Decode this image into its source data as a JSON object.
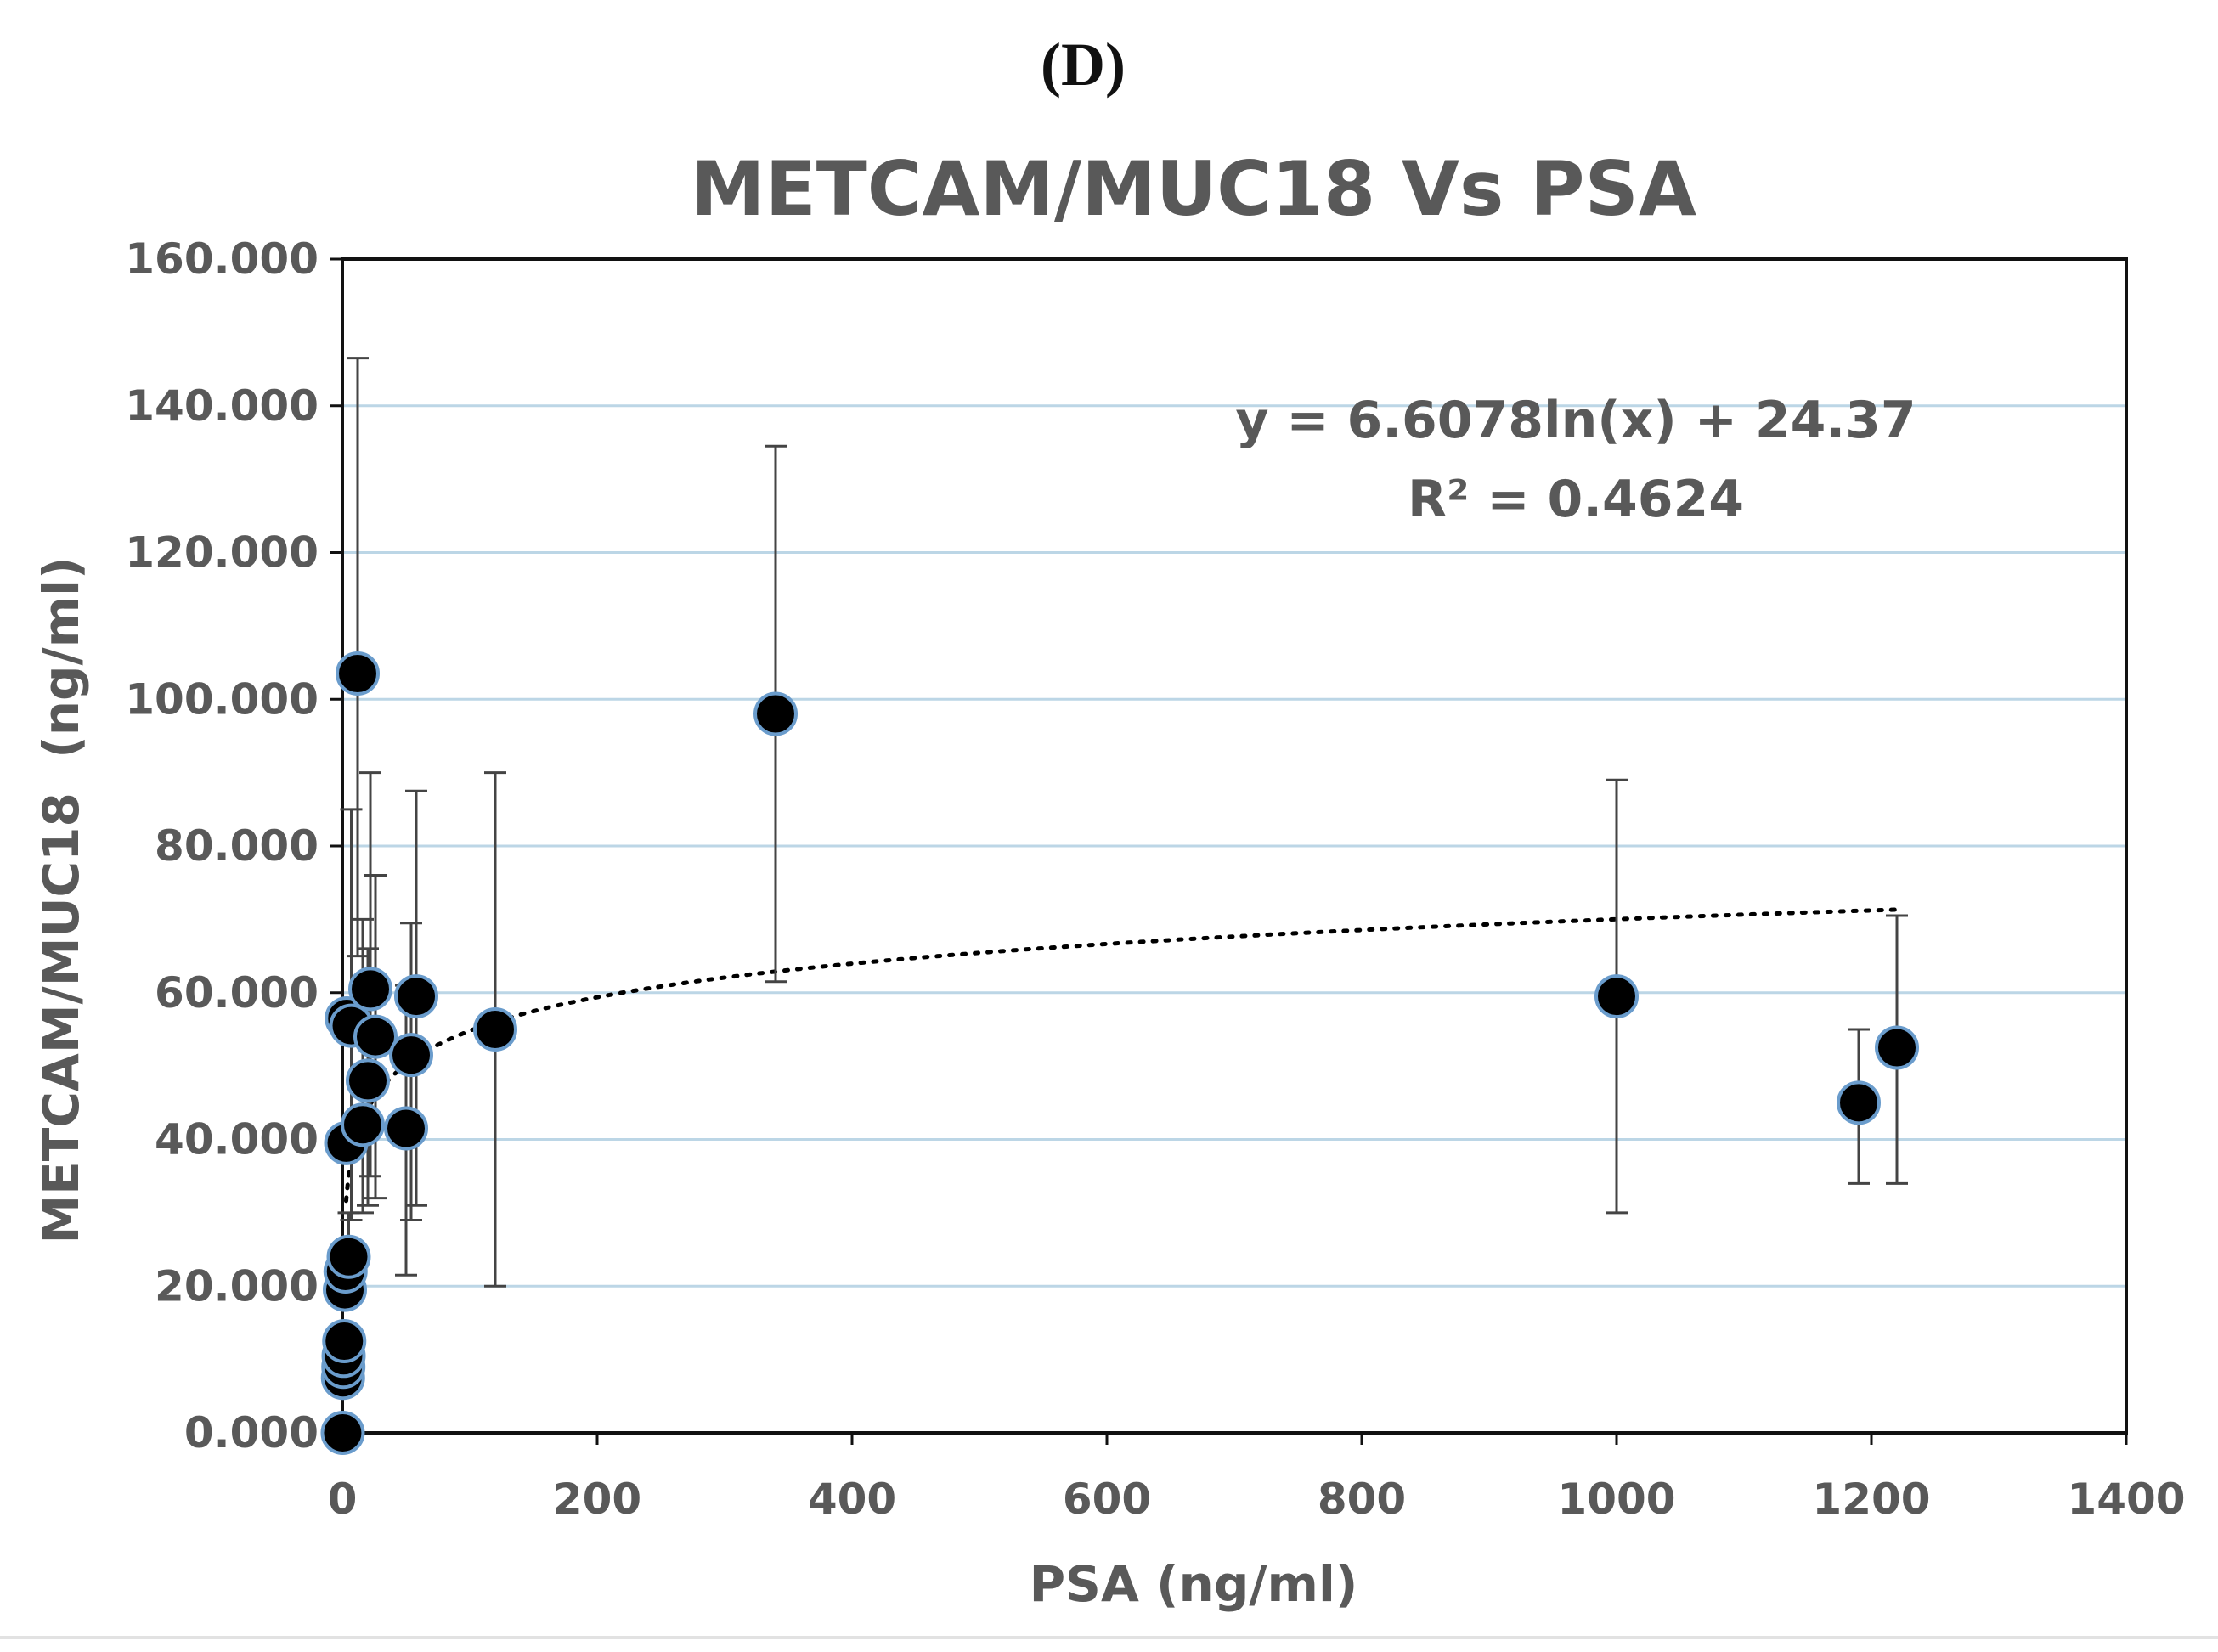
{
  "figure": {
    "panel_label": "(D)"
  },
  "chart_data": {
    "type": "scatter",
    "title": "METCAM/MUC18 Vs PSA",
    "xlabel": "PSA (ng/ml)",
    "ylabel": "METCAM/MUC18  (ng/ml)",
    "xlim": [
      0,
      1400
    ],
    "ylim": [
      0,
      160
    ],
    "x_ticks": [
      "0",
      "200",
      "400",
      "600",
      "800",
      "1000",
      "1200",
      "1400"
    ],
    "y_ticks": [
      "0.000",
      "20.000",
      "40.000",
      "60.000",
      "80.000",
      "100.000",
      "120.000",
      "140.000",
      "160.000"
    ],
    "x_tick_values": [
      0,
      200,
      400,
      600,
      800,
      1000,
      1200,
      1400
    ],
    "y_tick_values": [
      0,
      20,
      40,
      60,
      80,
      100,
      120,
      140,
      160
    ],
    "grid": true,
    "trendline": {
      "type": "logarithmic",
      "equation": "y = 6.6078ln(x) + 24.37",
      "r_squared": "R² = 0.4624",
      "a": 6.6078,
      "b": 24.37,
      "x_range": [
        3,
        1220
      ]
    },
    "points": [
      {
        "x": 0.3,
        "y": 0.0
      },
      {
        "x": 0.5,
        "y": 7.5
      },
      {
        "x": 0.8,
        "y": 9.0
      },
      {
        "x": 1.0,
        "y": 10.5
      },
      {
        "x": 1.5,
        "y": 12.5
      },
      {
        "x": 2.0,
        "y": 19.5
      },
      {
        "x": 2.5,
        "y": 22.0
      },
      {
        "x": 3.0,
        "y": 39.5
      },
      {
        "x": 3.5,
        "y": 56.5
      },
      {
        "x": 5.0,
        "y": 24.0,
        "err_low": 20.0,
        "err_high": 30.0
      },
      {
        "x": 7.0,
        "y": 55.5,
        "err_low": 29.0,
        "err_high": 85.0
      },
      {
        "x": 12.0,
        "y": 103.5,
        "err_low": 65.0,
        "err_high": 146.5
      },
      {
        "x": 16.0,
        "y": 42.0,
        "err_low": 30.0,
        "err_high": 70.0
      },
      {
        "x": 20.0,
        "y": 48.0,
        "err_low": 31.0,
        "err_high": 66.0
      },
      {
        "x": 22.0,
        "y": 60.5,
        "err_low": 35.0,
        "err_high": 90.0
      },
      {
        "x": 26.0,
        "y": 54.0,
        "err_low": 32.0,
        "err_high": 76.0
      },
      {
        "x": 50.0,
        "y": 41.5,
        "err_low": 21.5,
        "err_high": 61.0
      },
      {
        "x": 54.0,
        "y": 51.5,
        "err_low": 29.0,
        "err_high": 69.5
      },
      {
        "x": 58.0,
        "y": 59.5,
        "err_low": 31.0,
        "err_high": 87.5
      },
      {
        "x": 120.0,
        "y": 55.0,
        "err_low": 20.0,
        "err_high": 90.0
      },
      {
        "x": 340.0,
        "y": 98.0,
        "err_low": 61.5,
        "err_high": 134.5
      },
      {
        "x": 1000.0,
        "y": 59.5,
        "err_low": 30.0,
        "err_high": 89.0
      },
      {
        "x": 1190.0,
        "y": 45.0,
        "err_low": 34.0,
        "err_high": 55.0
      },
      {
        "x": 1220.0,
        "y": 52.5,
        "err_low": 34.0,
        "err_high": 70.5
      }
    ]
  }
}
